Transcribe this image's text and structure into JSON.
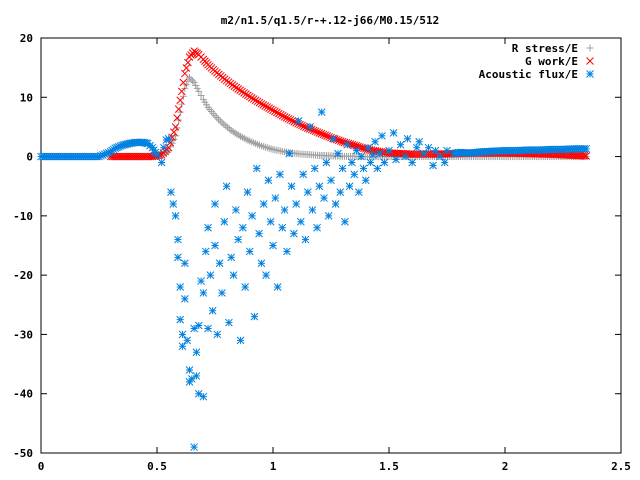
{
  "chart_data": {
    "type": "scatter",
    "title": "m2/n1.5/q1.5/r-+.12-j66/M0.15/512",
    "xlabel": "",
    "ylabel": "",
    "xlim": [
      0,
      2.5
    ],
    "ylim": [
      -50,
      20
    ],
    "x_ticks": [
      "0",
      "0.5",
      "1",
      "1.5",
      "2",
      "2.5"
    ],
    "y_ticks": [
      "20",
      "10",
      "0",
      "-10",
      "-20",
      "-30",
      "-40",
      "-50"
    ],
    "grid": false,
    "legend_position": "top-right",
    "series": [
      {
        "name": "R stress/E",
        "marker": "plus",
        "color": "#a0a0a0",
        "points": [
          [
            0.3,
            0
          ],
          [
            0.4,
            0
          ],
          [
            0.48,
            0
          ],
          [
            0.52,
            0.2
          ],
          [
            0.55,
            1.0
          ],
          [
            0.58,
            3.5
          ],
          [
            0.6,
            7.5
          ],
          [
            0.62,
            11.5
          ],
          [
            0.64,
            13.3
          ],
          [
            0.66,
            12.5
          ],
          [
            0.68,
            11.0
          ],
          [
            0.7,
            9.6
          ],
          [
            0.72,
            8.3
          ],
          [
            0.75,
            6.9
          ],
          [
            0.78,
            5.7
          ],
          [
            0.82,
            4.4
          ],
          [
            0.86,
            3.4
          ],
          [
            0.9,
            2.6
          ],
          [
            0.95,
            1.8
          ],
          [
            1.0,
            1.2
          ],
          [
            1.05,
            0.8
          ],
          [
            1.1,
            0.5
          ],
          [
            1.2,
            0.2
          ],
          [
            1.3,
            0.05
          ],
          [
            1.4,
            0
          ],
          [
            1.6,
            0
          ],
          [
            2.0,
            0
          ],
          [
            2.35,
            0
          ]
        ]
      },
      {
        "name": "G work/E",
        "marker": "cross",
        "color": "#ff0000",
        "points": [
          [
            0.3,
            0
          ],
          [
            0.4,
            0
          ],
          [
            0.48,
            0
          ],
          [
            0.52,
            0.3
          ],
          [
            0.55,
            1.5
          ],
          [
            0.58,
            5.0
          ],
          [
            0.6,
            9.5
          ],
          [
            0.62,
            14.0
          ],
          [
            0.64,
            16.8
          ],
          [
            0.66,
            17.8
          ],
          [
            0.68,
            17.2
          ],
          [
            0.7,
            16.4
          ],
          [
            0.72,
            15.5
          ],
          [
            0.75,
            14.4
          ],
          [
            0.8,
            12.8
          ],
          [
            0.85,
            11.4
          ],
          [
            0.9,
            10.1
          ],
          [
            0.95,
            8.9
          ],
          [
            1.0,
            7.8
          ],
          [
            1.05,
            6.7
          ],
          [
            1.1,
            5.7
          ],
          [
            1.15,
            4.8
          ],
          [
            1.2,
            4.0
          ],
          [
            1.25,
            3.2
          ],
          [
            1.3,
            2.5
          ],
          [
            1.35,
            1.9
          ],
          [
            1.4,
            1.3
          ],
          [
            1.45,
            0.9
          ],
          [
            1.5,
            0.6
          ],
          [
            1.6,
            0.4
          ],
          [
            1.7,
            0.4
          ],
          [
            1.8,
            0.5
          ],
          [
            1.9,
            0.6
          ],
          [
            2.0,
            0.6
          ],
          [
            2.1,
            0.5
          ],
          [
            2.2,
            0.4
          ],
          [
            2.35,
            0.1
          ]
        ]
      },
      {
        "name": "Acoustic flux/E",
        "marker": "star",
        "color": "#0080e0",
        "points": [
          [
            0.0,
            0
          ],
          [
            0.05,
            0
          ],
          [
            0.1,
            0
          ],
          [
            0.15,
            0
          ],
          [
            0.2,
            0
          ],
          [
            0.25,
            0
          ],
          [
            0.3,
            0.8
          ],
          [
            0.32,
            1.4
          ],
          [
            0.35,
            1.9
          ],
          [
            0.38,
            2.2
          ],
          [
            0.41,
            2.4
          ],
          [
            0.44,
            2.4
          ],
          [
            0.46,
            2.2
          ],
          [
            0.48,
            1.5
          ],
          [
            0.5,
            0.3
          ],
          [
            0.52,
            -1.0
          ],
          [
            0.53,
            1.5
          ],
          [
            0.54,
            2.8
          ],
          [
            0.55,
            3.0
          ],
          [
            0.56,
            -6.0
          ],
          [
            0.57,
            -8.0
          ],
          [
            0.58,
            -10.0
          ],
          [
            0.59,
            -14.0
          ],
          [
            0.59,
            -17.0
          ],
          [
            0.6,
            -22.0
          ],
          [
            0.6,
            -27.5
          ],
          [
            0.61,
            -30.0
          ],
          [
            0.61,
            -32.0
          ],
          [
            0.62,
            -24.0
          ],
          [
            0.62,
            -18.0
          ],
          [
            0.63,
            -31.0
          ],
          [
            0.64,
            -36.0
          ],
          [
            0.64,
            -38.0
          ],
          [
            0.65,
            -37.5
          ],
          [
            0.66,
            -29.0
          ],
          [
            0.66,
            -49.0
          ],
          [
            0.67,
            -33.0
          ],
          [
            0.67,
            -37.0
          ],
          [
            0.68,
            -28.5
          ],
          [
            0.68,
            -40.0
          ],
          [
            0.69,
            -21.0
          ],
          [
            0.7,
            -40.5
          ],
          [
            0.7,
            -23.0
          ],
          [
            0.71,
            -16.0
          ],
          [
            0.72,
            -29.0
          ],
          [
            0.72,
            -12.0
          ],
          [
            0.73,
            -20.0
          ],
          [
            0.74,
            -26.0
          ],
          [
            0.75,
            -15.0
          ],
          [
            0.75,
            -8.0
          ],
          [
            0.76,
            -30.0
          ],
          [
            0.77,
            -18.0
          ],
          [
            0.78,
            -23.0
          ],
          [
            0.79,
            -11.0
          ],
          [
            0.8,
            -5.0
          ],
          [
            0.81,
            -28.0
          ],
          [
            0.82,
            -17.0
          ],
          [
            0.83,
            -20.0
          ],
          [
            0.84,
            -9.0
          ],
          [
            0.85,
            -14.0
          ],
          [
            0.86,
            -31.0
          ],
          [
            0.87,
            -12.0
          ],
          [
            0.88,
            -22.0
          ],
          [
            0.89,
            -6.0
          ],
          [
            0.9,
            -16.0
          ],
          [
            0.91,
            -10.0
          ],
          [
            0.92,
            -27.0
          ],
          [
            0.93,
            -2.0
          ],
          [
            0.94,
            -13.0
          ],
          [
            0.95,
            -18.0
          ],
          [
            0.96,
            -8.0
          ],
          [
            0.97,
            -20.0
          ],
          [
            0.98,
            -4.0
          ],
          [
            0.99,
            -11.0
          ],
          [
            1.0,
            -15.0
          ],
          [
            1.01,
            -7.0
          ],
          [
            1.02,
            -22.0
          ],
          [
            1.03,
            -3.0
          ],
          [
            1.04,
            -12.0
          ],
          [
            1.05,
            -9.0
          ],
          [
            1.06,
            -16.0
          ],
          [
            1.07,
            0.5
          ],
          [
            1.08,
            -5.0
          ],
          [
            1.09,
            -13.0
          ],
          [
            1.1,
            -8.0
          ],
          [
            1.11,
            6.0
          ],
          [
            1.12,
            -11.0
          ],
          [
            1.13,
            -3.0
          ],
          [
            1.14,
            -14.0
          ],
          [
            1.15,
            -6.0
          ],
          [
            1.16,
            5.0
          ],
          [
            1.17,
            -9.0
          ],
          [
            1.18,
            -2.0
          ],
          [
            1.19,
            -12.0
          ],
          [
            1.2,
            -5.0
          ],
          [
            1.21,
            7.5
          ],
          [
            1.22,
            -7.0
          ],
          [
            1.23,
            -1.0
          ],
          [
            1.24,
            -10.0
          ],
          [
            1.25,
            -4.0
          ],
          [
            1.26,
            3.0
          ],
          [
            1.27,
            -8.0
          ],
          [
            1.28,
            0.5
          ],
          [
            1.29,
            -6.0
          ],
          [
            1.3,
            -2.0
          ],
          [
            1.31,
            -11.0
          ],
          [
            1.32,
            2.0
          ],
          [
            1.33,
            -5.0
          ],
          [
            1.34,
            -1.0
          ],
          [
            1.35,
            -3.0
          ],
          [
            1.36,
            1.0
          ],
          [
            1.37,
            -6.0
          ],
          [
            1.38,
            0.0
          ],
          [
            1.39,
            -2.0
          ],
          [
            1.4,
            -4.0
          ],
          [
            1.41,
            1.5
          ],
          [
            1.42,
            -1.0
          ],
          [
            1.43,
            0.3
          ],
          [
            1.44,
            2.5
          ],
          [
            1.45,
            -2.0
          ],
          [
            1.46,
            0.5
          ],
          [
            1.47,
            3.5
          ],
          [
            1.48,
            -1.0
          ],
          [
            1.5,
            1.0
          ],
          [
            1.52,
            4.0
          ],
          [
            1.53,
            -0.5
          ],
          [
            1.55,
            2.0
          ],
          [
            1.57,
            0.0
          ],
          [
            1.58,
            3.0
          ],
          [
            1.6,
            -1.0
          ],
          [
            1.62,
            1.5
          ],
          [
            1.63,
            2.5
          ],
          [
            1.65,
            0.5
          ],
          [
            1.67,
            1.5
          ],
          [
            1.69,
            -1.5
          ],
          [
            1.7,
            1.0
          ],
          [
            1.72,
            0.0
          ],
          [
            1.74,
            -1.0
          ],
          [
            1.75,
            1.0
          ],
          [
            1.78,
            0.5
          ],
          [
            1.8,
            0.7
          ],
          [
            1.85,
            0.6
          ],
          [
            1.9,
            0.8
          ],
          [
            1.95,
            0.9
          ],
          [
            2.0,
            1.0
          ],
          [
            2.05,
            1.0
          ],
          [
            2.1,
            1.1
          ],
          [
            2.15,
            1.1
          ],
          [
            2.2,
            1.2
          ],
          [
            2.25,
            1.2
          ],
          [
            2.3,
            1.3
          ],
          [
            2.35,
            1.3
          ]
        ]
      }
    ]
  }
}
